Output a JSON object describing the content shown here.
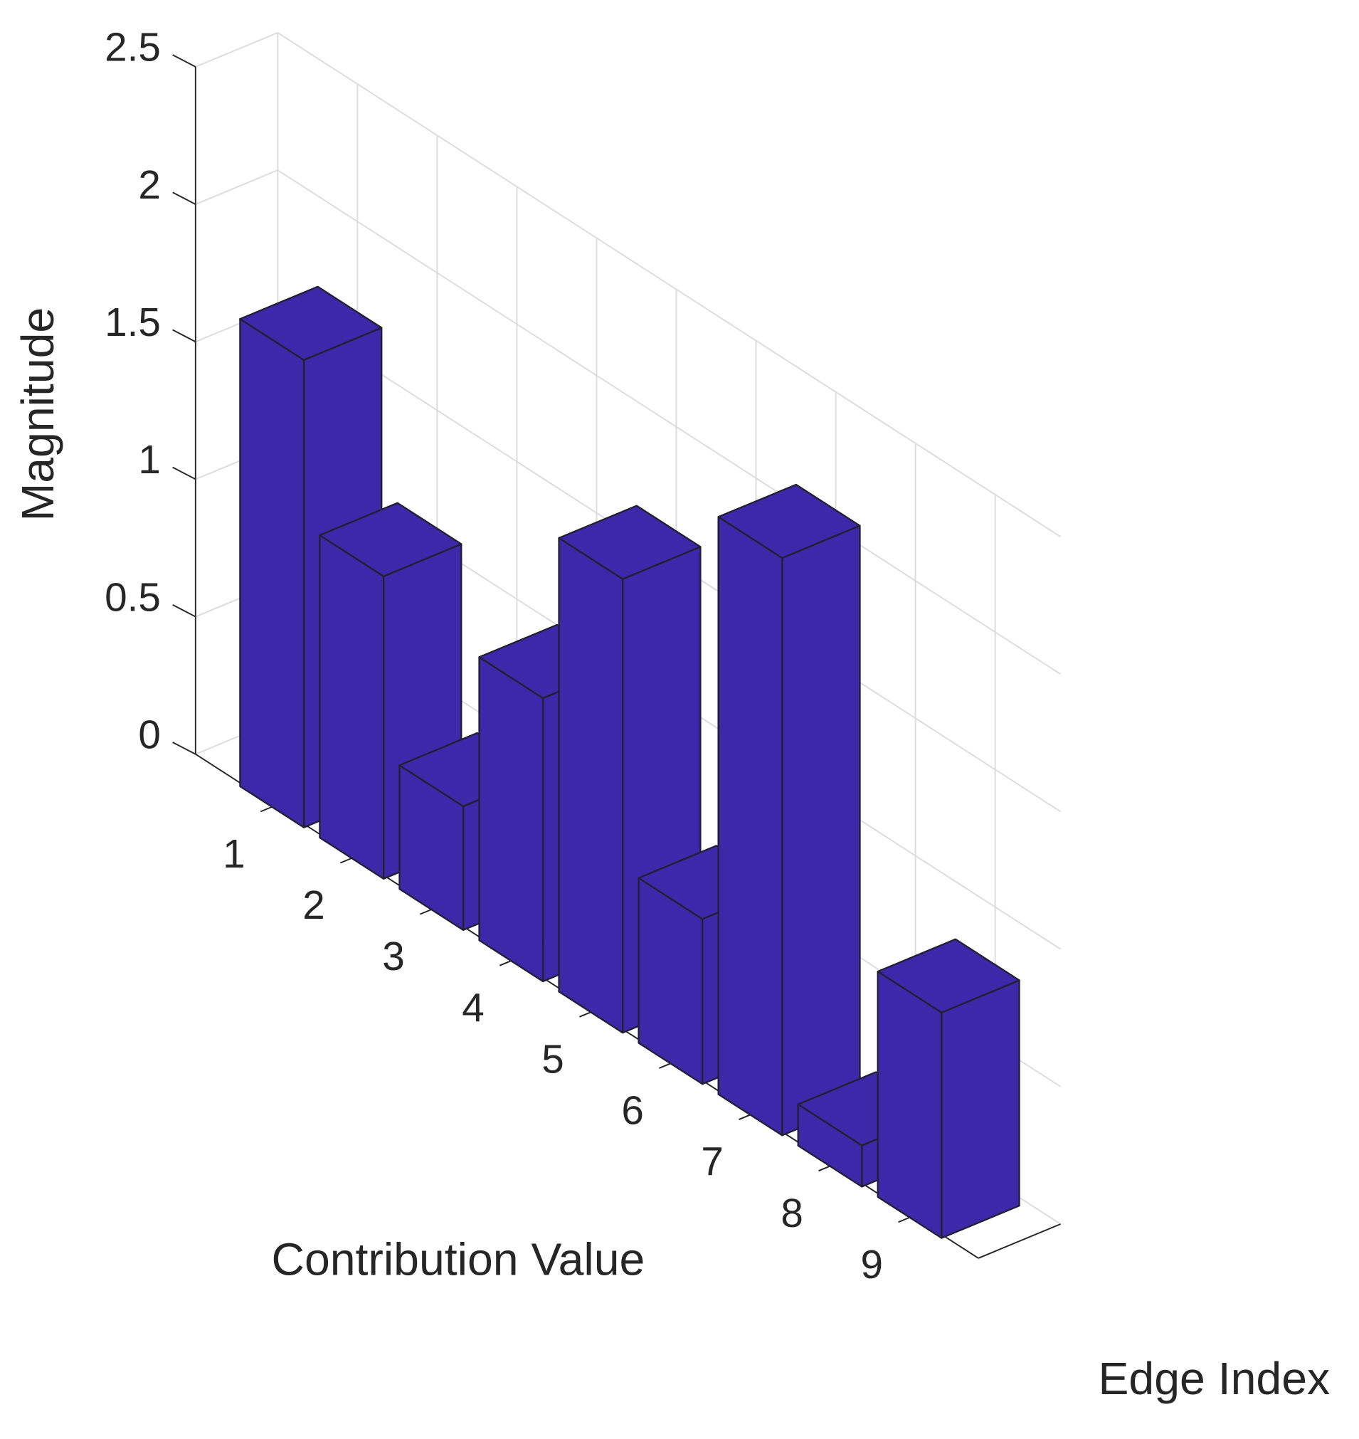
{
  "chart_data": {
    "type": "bar3d",
    "z_label": "Magnitude",
    "x_label": "Contribution Value",
    "y_label": "Edge Index",
    "categories": [
      "1",
      "2",
      "3",
      "4",
      "5",
      "6",
      "7",
      "8",
      "9"
    ],
    "values": [
      1.7,
      1.1,
      0.45,
      1.03,
      1.65,
      0.6,
      2.1,
      0.15,
      0.82
    ],
    "color": "#3c28a9",
    "zlim": [
      0,
      2.5
    ],
    "zticks": [
      0,
      0.5,
      1,
      1.5,
      2,
      2.5
    ],
    "grid": true
  }
}
